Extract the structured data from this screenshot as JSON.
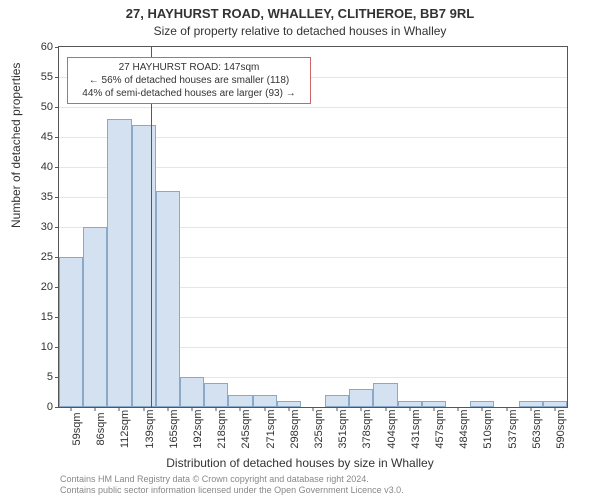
{
  "chart": {
    "type": "histogram",
    "title_main": "27, HAYHURST ROAD, WHALLEY, CLITHEROE, BB7 9RL",
    "title_sub": "Size of property relative to detached houses in Whalley",
    "y_axis_label": "Number of detached properties",
    "x_axis_label": "Distribution of detached houses by size in Whalley",
    "ylim": [
      0,
      60
    ],
    "ytick_step": 5,
    "y_ticks": [
      0,
      5,
      10,
      15,
      20,
      25,
      30,
      35,
      40,
      45,
      50,
      55,
      60
    ],
    "x_ticks": [
      "59sqm",
      "86sqm",
      "112sqm",
      "139sqm",
      "165sqm",
      "192sqm",
      "218sqm",
      "245sqm",
      "271sqm",
      "298sqm",
      "325sqm",
      "351sqm",
      "378sqm",
      "404sqm",
      "431sqm",
      "457sqm",
      "484sqm",
      "510sqm",
      "537sqm",
      "563sqm",
      "590sqm"
    ],
    "values": [
      25,
      30,
      48,
      47,
      36,
      5,
      4,
      2,
      2,
      1,
      0,
      2,
      3,
      4,
      1,
      1,
      0,
      1,
      0,
      1,
      1
    ],
    "bar_fill": "#d3e1f0",
    "bar_border": "#8aa8c8",
    "grid_color": "#e6e6e6",
    "background_color": "#ffffff",
    "reference_line": {
      "index": 3.3,
      "color": "#c62828"
    },
    "callout": {
      "line1": "27 HAYHURST ROAD: 147sqm",
      "line2": "← 56% of detached houses are smaller (118)",
      "line3": "44% of semi-detached houses are larger (93) →",
      "border_color": "#cc6666"
    },
    "attribution_line1": "Contains HM Land Registry data © Crown copyright and database right 2024.",
    "attribution_line2": "Contains public sector information licensed under the Open Government Licence v3.0."
  }
}
